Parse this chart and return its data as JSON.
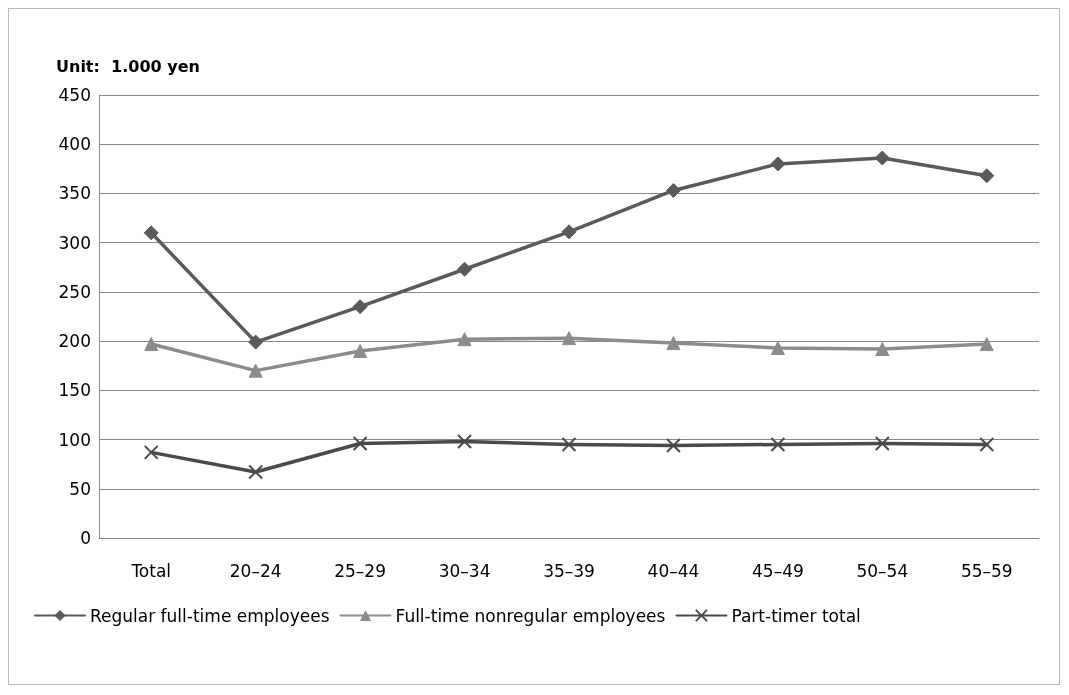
{
  "chart_data": {
    "type": "line",
    "ylabel": "Unit:  1.000 yen",
    "categories": [
      "Total",
      "20–24",
      "25–29",
      "30–34",
      "35–39",
      "40–44",
      "45–49",
      "50–54",
      "55–59"
    ],
    "series": [
      {
        "name": "Regular full-time employees",
        "color": "#5a5a5a",
        "marker": "diamond",
        "values": [
          310,
          199,
          235,
          273,
          311,
          353,
          380,
          386,
          368
        ]
      },
      {
        "name": "Full-time nonregular employees",
        "color": "#8c8c8c",
        "marker": "triangle",
        "values": [
          197,
          170,
          190,
          202,
          203,
          198,
          193,
          192,
          197
        ]
      },
      {
        "name": "Part-timer total",
        "color": "#4a4a4a",
        "marker": "cross",
        "values": [
          87,
          67,
          96,
          98,
          95,
          94,
          95,
          96,
          95
        ]
      }
    ],
    "ylim": [
      0,
      450
    ],
    "yticks": [
      0,
      50,
      100,
      150,
      200,
      250,
      300,
      350,
      400,
      450
    ],
    "grid": "y",
    "legend": "bottom",
    "line_style": "solid"
  }
}
